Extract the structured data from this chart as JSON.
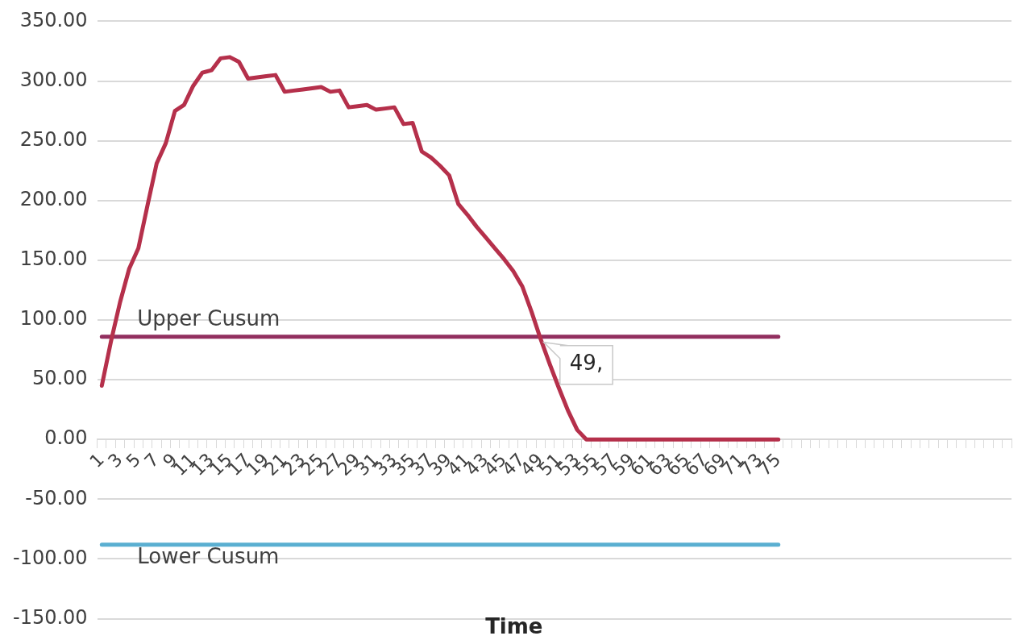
{
  "chart_data": {
    "type": "line",
    "xlabel": "Time",
    "categories": [
      "1",
      null,
      "3",
      null,
      "5",
      null,
      "7",
      null,
      "9",
      null,
      "11",
      null,
      "13",
      null,
      "15",
      null,
      "17",
      null,
      "19",
      null,
      "21",
      null,
      "23",
      null,
      "25",
      null,
      "27",
      null,
      "29",
      null,
      "31",
      null,
      "33",
      null,
      "35",
      null,
      "37",
      null,
      "39",
      null,
      "41",
      null,
      "43",
      null,
      "45",
      null,
      "47",
      null,
      "49",
      null,
      "51",
      null,
      "53",
      null,
      "55",
      null,
      "57",
      null,
      "59",
      null,
      "61",
      null,
      "63",
      null,
      "65",
      null,
      "67",
      null,
      "69",
      null,
      "71",
      null,
      "73",
      null,
      "75",
      null,
      null,
      null,
      null,
      null,
      null,
      null,
      null,
      null,
      null,
      null,
      null,
      null,
      null,
      null,
      null,
      null,
      null,
      null,
      null,
      null,
      null,
      null,
      null,
      null
    ],
    "series": [
      {
        "color": "#b5304b",
        "values": [
          45,
          82,
          115,
          143,
          160,
          196,
          231,
          248,
          275,
          280,
          296,
          307,
          309,
          319,
          320,
          316,
          302,
          303,
          304,
          305,
          291,
          292,
          293,
          294,
          295,
          291,
          292,
          278,
          279,
          280,
          276,
          277,
          278,
          264,
          265,
          241,
          236,
          229,
          221,
          197,
          188,
          178,
          169,
          160,
          151,
          141,
          128,
          107,
          84,
          63,
          43,
          24,
          8,
          0,
          0,
          0,
          0,
          0,
          0,
          0,
          0,
          0,
          0,
          0,
          0,
          0,
          0,
          0,
          0,
          0,
          0,
          0,
          0,
          0,
          0,
          null,
          null,
          null,
          null,
          null,
          null,
          null,
          null,
          null,
          null,
          null,
          null,
          null,
          null,
          null,
          null,
          null,
          null,
          null,
          null,
          null,
          null,
          null,
          null,
          null
        ]
      },
      {
        "name": "Upper Cusum",
        "color": "#922f5f",
        "values": [
          86,
          86,
          86,
          86,
          86,
          86,
          86,
          86,
          86,
          86,
          86,
          86,
          86,
          86,
          86,
          86,
          86,
          86,
          86,
          86,
          86,
          86,
          86,
          86,
          86,
          86,
          86,
          86,
          86,
          86,
          86,
          86,
          86,
          86,
          86,
          86,
          86,
          86,
          86,
          86,
          86,
          86,
          86,
          86,
          86,
          86,
          86,
          86,
          86,
          86,
          86,
          86,
          86,
          86,
          86,
          86,
          86,
          86,
          86,
          86,
          86,
          86,
          86,
          86,
          86,
          86,
          86,
          86,
          86,
          86,
          86,
          86,
          86,
          86,
          86,
          null,
          null,
          null,
          null,
          null,
          null,
          null,
          null,
          null,
          null,
          null,
          null,
          null,
          null,
          null,
          null,
          null,
          null,
          null,
          null,
          null,
          null,
          null,
          null,
          null
        ]
      },
      {
        "name": "Lower Cusum",
        "color": "#5aafd1",
        "values": [
          -88,
          -88,
          -88,
          -88,
          -88,
          -88,
          -88,
          -88,
          -88,
          -88,
          -88,
          -88,
          -88,
          -88,
          -88,
          -88,
          -88,
          -88,
          -88,
          -88,
          -88,
          -88,
          -88,
          -88,
          -88,
          -88,
          -88,
          -88,
          -88,
          -88,
          -88,
          -88,
          -88,
          -88,
          -88,
          -88,
          -88,
          -88,
          -88,
          -88,
          -88,
          -88,
          -88,
          -88,
          -88,
          -88,
          -88,
          -88,
          -88,
          -88,
          -88,
          -88,
          -88,
          -88,
          -88,
          -88,
          -88,
          -88,
          -88,
          -88,
          -88,
          -88,
          -88,
          -88,
          -88,
          -88,
          -88,
          -88,
          -88,
          -88,
          -88,
          -88,
          -88,
          -88,
          -88,
          null,
          null,
          null,
          null,
          null,
          null,
          null,
          null,
          null,
          null,
          null,
          null,
          null,
          null,
          null,
          null,
          null,
          null,
          null,
          null,
          null,
          null,
          null,
          null,
          null
        ]
      }
    ],
    "ylim": [
      -150,
      350
    ],
    "yticks": [
      {
        "value": -150,
        "label": "-150.00"
      },
      {
        "value": -100,
        "label": "-100.00"
      },
      {
        "value": -50,
        "label": "-50.00"
      },
      {
        "value": 0,
        "label": "0.00"
      },
      {
        "value": 50,
        "label": "50.00"
      },
      {
        "value": 100,
        "label": "100.00"
      },
      {
        "value": 150,
        "label": "150.00"
      },
      {
        "value": 200,
        "label": "200.00"
      },
      {
        "value": 250,
        "label": "250.00"
      },
      {
        "value": 300,
        "label": "300.00"
      },
      {
        "value": 350,
        "label": "350.00"
      }
    ],
    "annotations": [
      {
        "text": "49,",
        "x": "49",
        "y": 84
      }
    ],
    "grid": "y",
    "legend": false,
    "marker": "none",
    "line_style": "solid"
  }
}
